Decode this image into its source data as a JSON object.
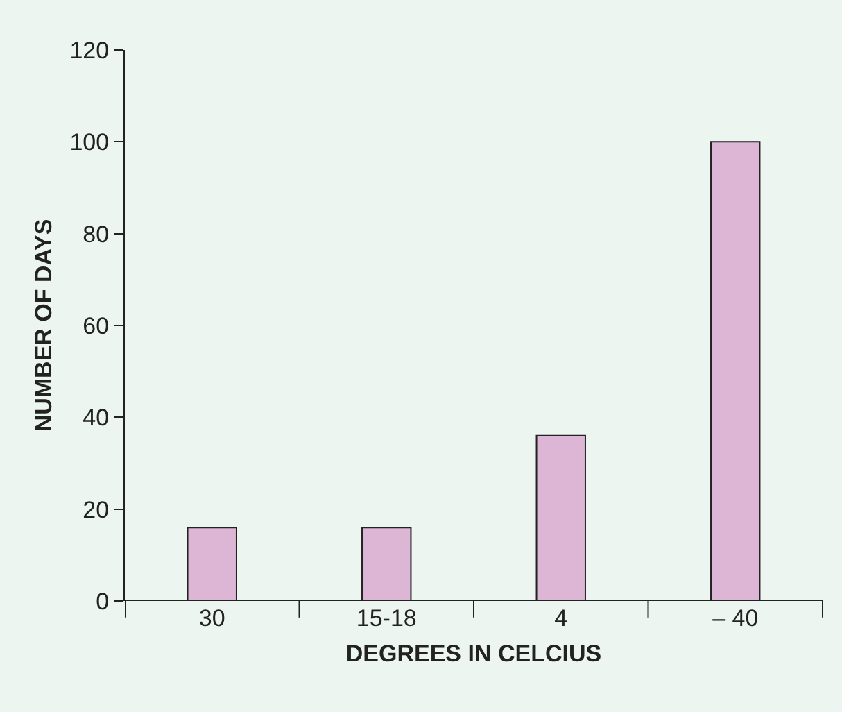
{
  "chart_data": {
    "type": "bar",
    "xlabel": "DEGREES IN CELCIUS",
    "ylabel": "NUMBER OF DAYS",
    "categories": [
      "30",
      "15-18",
      "4",
      "– 40"
    ],
    "values": [
      16,
      16,
      36,
      100
    ],
    "color": "#deb6d5",
    "ylim": [
      0,
      120
    ],
    "yticks": [
      0,
      20,
      40,
      60,
      80,
      100,
      120
    ],
    "grid": false
  }
}
